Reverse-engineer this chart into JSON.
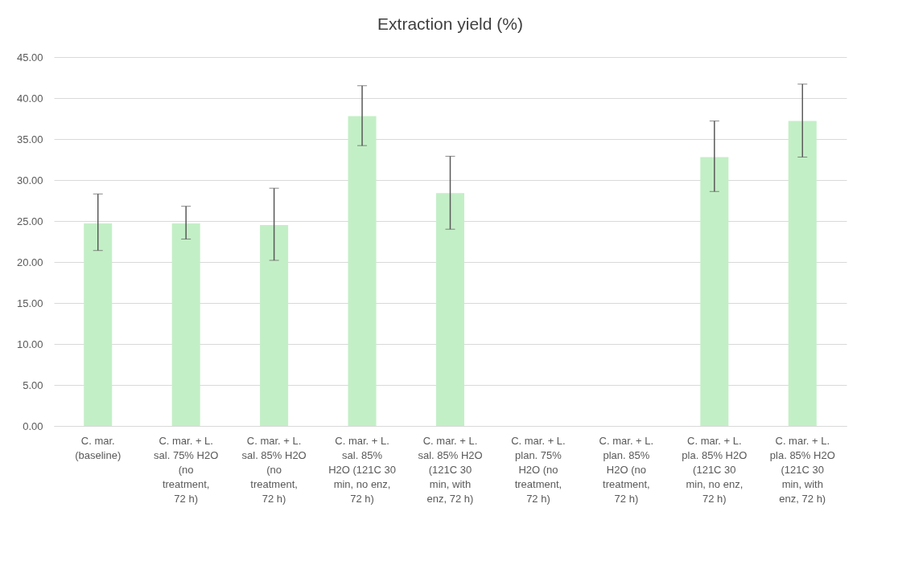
{
  "chart_data": {
    "type": "bar",
    "title": "Extraction yield (%)",
    "categories": [
      "C. mar. (baseline)",
      "C. mar. + L. sal. 75% H2O (no treatment, 72 h)",
      "C. mar. + L. sal. 85% H2O (no treatment, 72 h)",
      "C. mar. + L. sal.  85% H2O (121C 30 min, no enz, 72 h)",
      "C. mar. + L. sal. 85% H2O (121C 30 min, with enz, 72 h)",
      "C. mar. + L. plan. 75% H2O (no treatment, 72 h)",
      "C. mar. + L. plan. 85% H2O (no treatment, 72 h)",
      "C. mar. + L. pla. 85% H2O (121C 30 min, no enz, 72 h)",
      "C. mar. + L. pla. 85% H2O (121C 30 min, with enz, 72 h)"
    ],
    "values": [
      24.7,
      24.7,
      24.5,
      37.8,
      28.4,
      null,
      null,
      32.8,
      37.2
    ],
    "errors": [
      [
        21.4,
        28.3
      ],
      [
        22.8,
        26.8
      ],
      [
        20.2,
        29.0
      ],
      [
        34.2,
        41.5
      ],
      [
        24.0,
        32.9
      ],
      null,
      null,
      [
        28.6,
        37.2
      ],
      [
        32.8,
        41.7
      ]
    ],
    "color": "#c3efc6",
    "ylim": [
      0,
      45
    ],
    "yticks": [
      {
        "value": 0,
        "label": "0.00"
      },
      {
        "value": 5,
        "label": "5.00"
      },
      {
        "value": 10,
        "label": "10.00"
      },
      {
        "value": 15,
        "label": "15.00"
      },
      {
        "value": 20,
        "label": "20.00"
      },
      {
        "value": 25,
        "label": "25.00"
      },
      {
        "value": 30,
        "label": "30.00"
      },
      {
        "value": 35,
        "label": "35.00"
      },
      {
        "value": 40,
        "label": "40.00"
      },
      {
        "value": 45,
        "label": "45.00"
      }
    ],
    "grid": "y"
  }
}
